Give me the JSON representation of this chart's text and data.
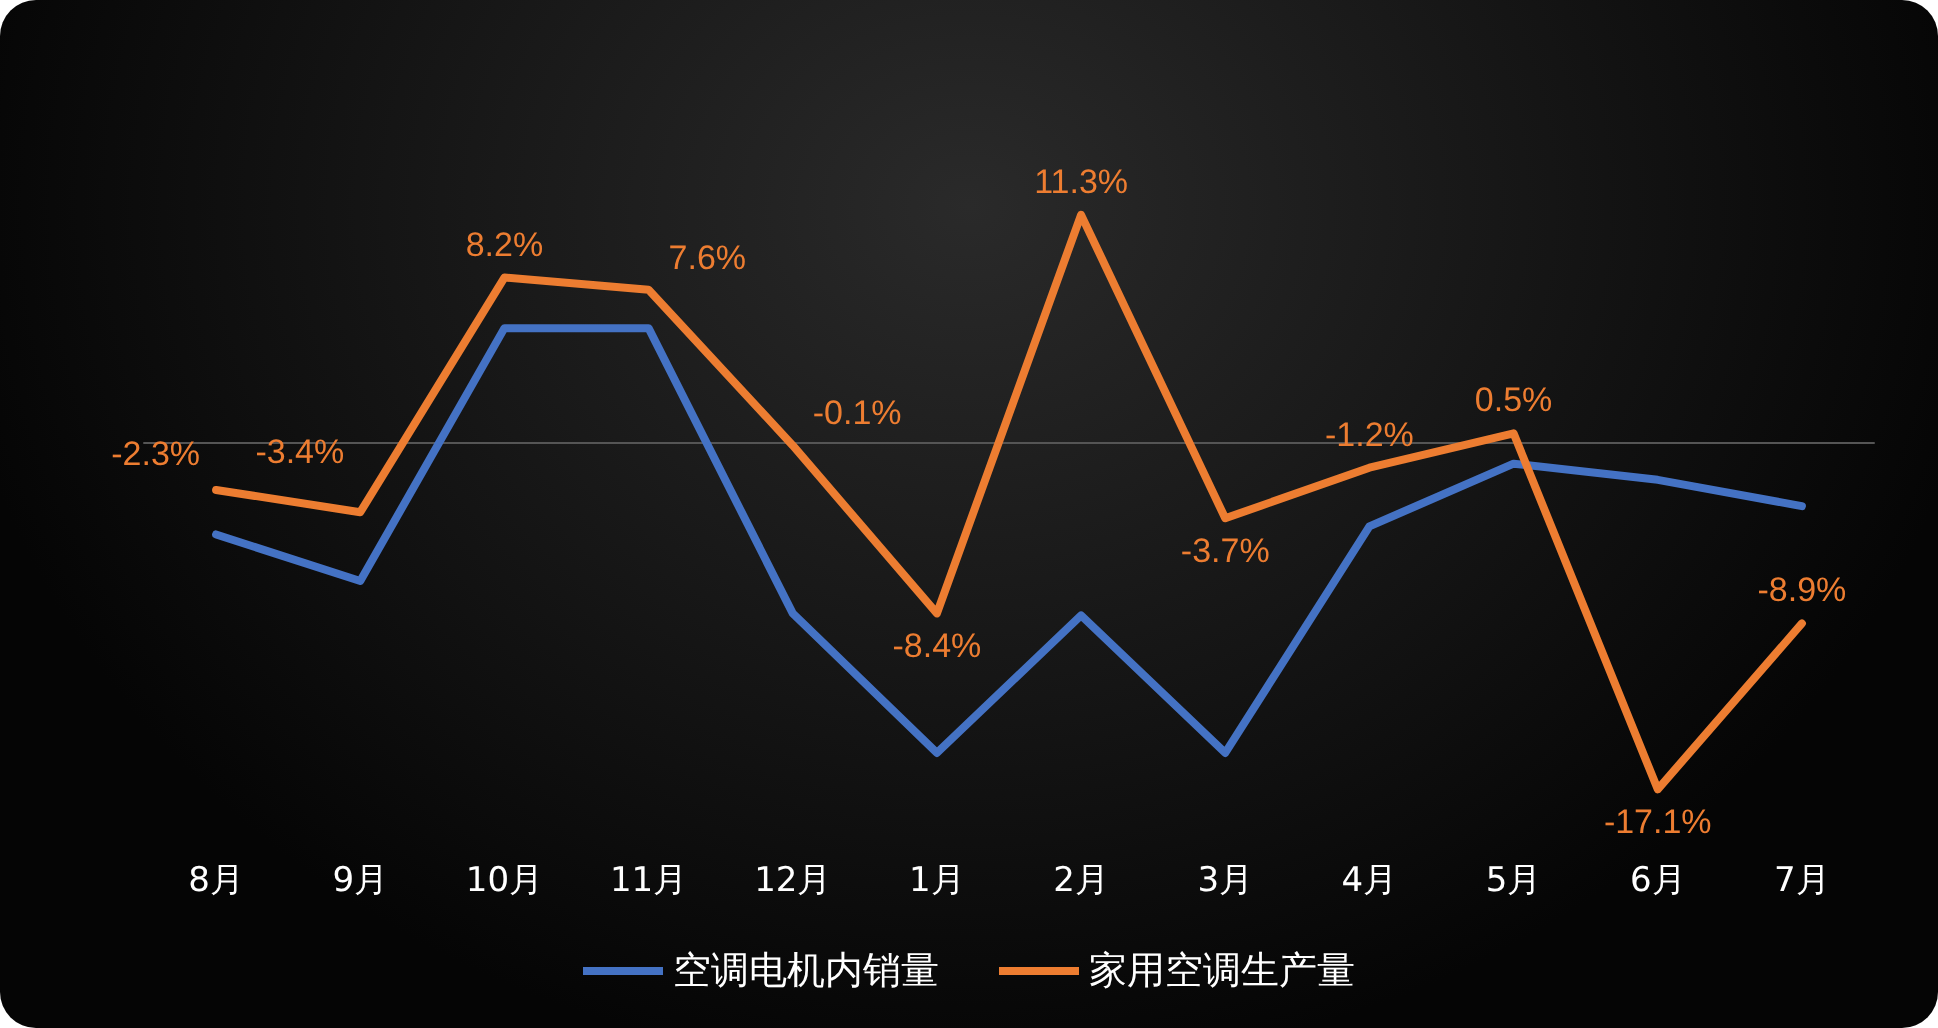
{
  "chart_data": {
    "type": "line",
    "categories": [
      "8月",
      "9月",
      "10月",
      "11月",
      "12月",
      "1月",
      "2月",
      "3月",
      "4月",
      "5月",
      "6月",
      "7月"
    ],
    "series": [
      {
        "name": "空调电机内销量",
        "color": "#4472c4",
        "values": [
          -4.5,
          -6.8,
          5.7,
          5.7,
          -8.4,
          -15.3,
          -8.5,
          -15.3,
          -4.1,
          -1.0,
          -1.8,
          -3.1
        ]
      },
      {
        "name": "家用空调生产量",
        "color": "#ed7d31",
        "values": [
          -2.3,
          -3.4,
          8.2,
          7.6,
          -0.1,
          -8.4,
          11.3,
          -3.7,
          -1.2,
          0.5,
          -17.1,
          -8.9
        ],
        "value_labels": [
          "-2.3%",
          "-3.4%",
          "8.2%",
          "7.6%",
          "-0.1%",
          "-8.4%",
          "11.3%",
          "-3.7%",
          "-1.2%",
          "0.5%",
          "-17.1%",
          "-8.9%"
        ]
      }
    ],
    "legend": "bottom",
    "grid": false,
    "marker": "none",
    "line_style": "solid"
  }
}
